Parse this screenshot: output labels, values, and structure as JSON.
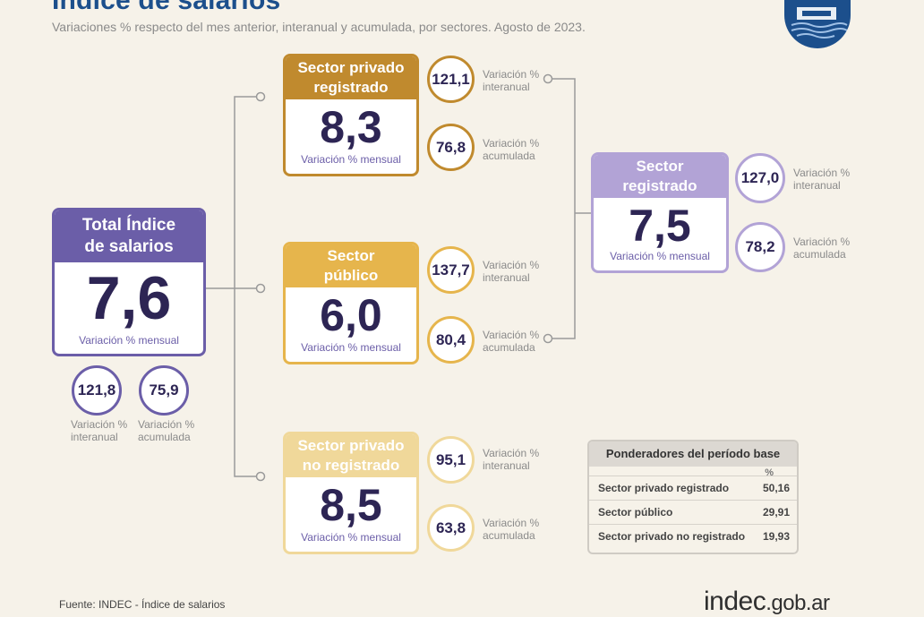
{
  "header": {
    "title": "Índice de salarios",
    "subtitle": "Variaciones % respecto del mes anterior, interanual y acumulada, por sectores. Agosto de 2023."
  },
  "colors": {
    "total": "#6b5ea8",
    "privado_registrado": "#c08a2e",
    "publico": "#e6b54c",
    "privado_no_registrado": "#f0d89a",
    "sector_registrado": "#b2a3d6",
    "brand": "#1c4f8c"
  },
  "total": {
    "title_line1": "Total Índice",
    "title_line2": "de salarios",
    "value": "7,6",
    "caption": "Variación % mensual",
    "interanual": {
      "value": "121,8",
      "label_line1": "Variación %",
      "label_line2": "interanual"
    },
    "acumulada": {
      "value": "75,9",
      "label_line1": "Variación %",
      "label_line2": "acumulada"
    }
  },
  "privado_registrado": {
    "title_line1": "Sector privado",
    "title_line2": "registrado",
    "value": "8,3",
    "caption": "Variación % mensual",
    "interanual": {
      "value": "121,1",
      "label_line1": "Variación %",
      "label_line2": "interanual"
    },
    "acumulada": {
      "value": "76,8",
      "label_line1": "Variación %",
      "label_line2": "acumulada"
    }
  },
  "publico": {
    "title_line1": "Sector",
    "title_line2": "público",
    "value": "6,0",
    "caption": "Variación % mensual",
    "interanual": {
      "value": "137,7",
      "label_line1": "Variación %",
      "label_line2": "interanual"
    },
    "acumulada": {
      "value": "80,4",
      "label_line1": "Variación %",
      "label_line2": "acumulada"
    }
  },
  "privado_no_registrado": {
    "title_line1": "Sector privado",
    "title_line2": "no registrado",
    "value": "8,5",
    "caption": "Variación % mensual",
    "interanual": {
      "value": "95,1",
      "label_line1": "Variación %",
      "label_line2": "interanual"
    },
    "acumulada": {
      "value": "63,8",
      "label_line1": "Variación %",
      "label_line2": "acumulada"
    }
  },
  "sector_registrado": {
    "title_line1": "Sector",
    "title_line2": "registrado",
    "value": "7,5",
    "caption": "Variación % mensual",
    "interanual": {
      "value": "127,0",
      "label_line1": "Variación %",
      "label_line2": "interanual"
    },
    "acumulada": {
      "value": "78,2",
      "label_line1": "Variación %",
      "label_line2": "acumulada"
    }
  },
  "weights_table": {
    "title": "Ponderadores del período base",
    "unit": "%",
    "rows": [
      {
        "label": "Sector privado registrado",
        "value": "50,16"
      },
      {
        "label": "Sector público",
        "value": "29,91"
      },
      {
        "label": "Sector privado no registrado",
        "value": "19,93"
      }
    ]
  },
  "footer": {
    "source": "Fuente: INDEC - Índice de salarios",
    "site_main": "indec",
    "site_suffix": ".gob.ar"
  }
}
